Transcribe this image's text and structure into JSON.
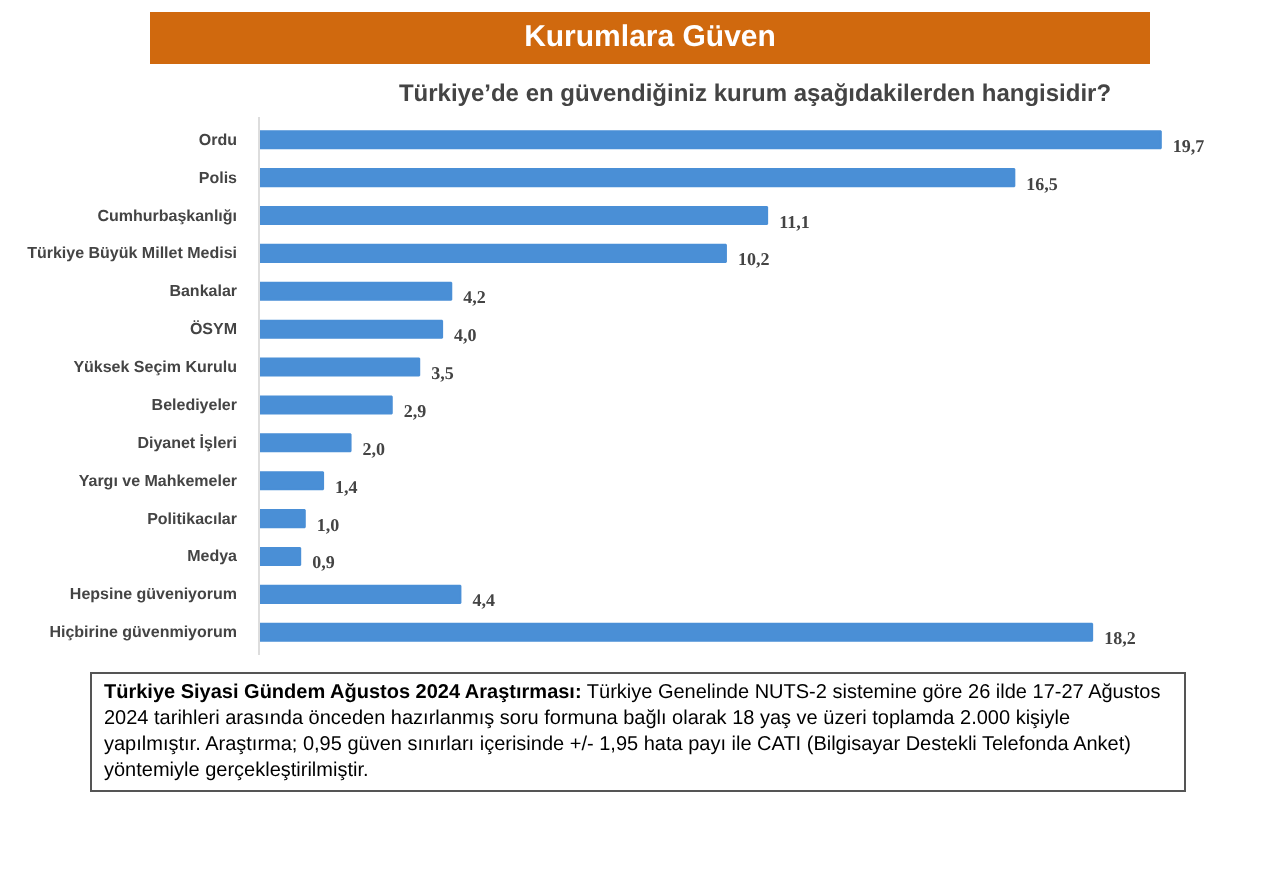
{
  "chart_data": {
    "type": "bar",
    "orientation": "horizontal",
    "title": "Kurumlara Güven",
    "subtitle": "Türkiye’de en güvendiğiniz kurum aşağıdakilerden hangisidir?",
    "categories": [
      "Ordu",
      "Polis",
      "Cumhurbaşkanlığı",
      "Türkiye Büyük Millet Medisi",
      "Bankalar",
      "ÖSYM",
      "Yüksek Seçim Kurulu",
      "Belediyeler",
      "Diyanet İşleri",
      "Yargı ve Mahkemeler",
      "Politikacılar",
      "Medya",
      "Hepsine güveniyorum",
      "Hiçbirine güvenmiyorum"
    ],
    "values": [
      19.7,
      16.5,
      11.1,
      10.2,
      4.2,
      4.0,
      3.5,
      2.9,
      2.0,
      1.4,
      1.0,
      0.9,
      4.4,
      18.2
    ],
    "value_labels": [
      "19,7",
      "16,5",
      "11,1",
      "10,2",
      "4,2",
      "4,0",
      "3,5",
      "2,9",
      "2,0",
      "1,4",
      "1,0",
      "0,9",
      "4,4",
      "18,2"
    ],
    "color": "#4a8fd6",
    "annotations": [
      "Türkiye Siyasi Gündem Ağustos 2024 Araştırması:",
      "Türkiye Genelinde NUTS-2 sistemine göre 26 ilde 17-27 Ağustos 2024 tarihleri arasında önceden hazırlanmış soru formuna bağlı olarak 18 yaş ve üzeri toplamda 2.000 kişiyle yapılmıştır. Araştırma; 0,95 güven sınırları içerisinde +/- 1,95 hata payı ile CATI (Bilgisayar Destekli Telefonda Anket) yöntemiyle gerçekleştirilmiştir."
    ],
    "grid": false
  }
}
